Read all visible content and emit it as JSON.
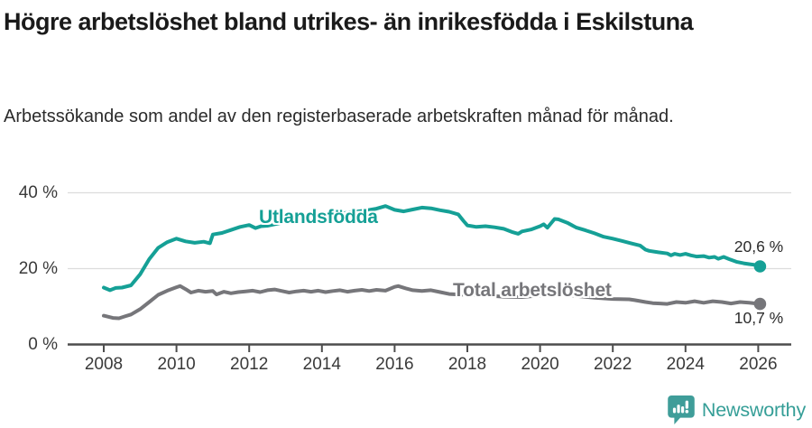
{
  "header": {
    "title": "Högre arbetslöshet bland utrikes- än inrikesfödda i Eskilstuna",
    "subtitle": "Arbetssökande som andel av den registerbaserade arbetskraften månad för månad."
  },
  "chart_data": {
    "type": "line",
    "title": "Högre arbetslöshet bland utrikes- än inrikesfödda i Eskilstuna",
    "subtitle": "Arbetssökande som andel av den registerbaserade arbetskraften månad för månad.",
    "xlabel": "",
    "ylabel": "",
    "xlim": [
      2007,
      2026.9
    ],
    "ylim": [
      0,
      42
    ],
    "grid": "horizontal",
    "grid_color": "#dcdcdc",
    "axis_color": "#4d4d4d",
    "x_ticks": [
      2008,
      2010,
      2012,
      2014,
      2016,
      2018,
      2020,
      2022,
      2024,
      2026
    ],
    "y_ticks": [
      {
        "value": 0,
        "label": "0 %"
      },
      {
        "value": 20,
        "label": "20 %"
      },
      {
        "value": 40,
        "label": "40 %"
      }
    ],
    "series": [
      {
        "name": "Utlandsfödda",
        "color": "#15a096",
        "end_label": "20,6 %",
        "end_value": 20.6,
        "points": [
          [
            2008,
            15.0
          ],
          [
            2008.17,
            14.3
          ],
          [
            2008.33,
            14.9
          ],
          [
            2008.5,
            15.0
          ],
          [
            2008.75,
            15.6
          ],
          [
            2009,
            18.5
          ],
          [
            2009.25,
            22.5
          ],
          [
            2009.5,
            25.5
          ],
          [
            2009.75,
            27.0
          ],
          [
            2010,
            27.9
          ],
          [
            2010.25,
            27.2
          ],
          [
            2010.5,
            26.8
          ],
          [
            2010.75,
            27.1
          ],
          [
            2010.92,
            26.7
          ],
          [
            2011,
            29.0
          ],
          [
            2011.25,
            29.4
          ],
          [
            2011.5,
            30.2
          ],
          [
            2011.75,
            31.0
          ],
          [
            2012,
            31.5
          ],
          [
            2012.17,
            30.7
          ],
          [
            2012.33,
            31.2
          ],
          [
            2012.5,
            31.3
          ],
          [
            2012.75,
            31.8
          ],
          [
            2013,
            32.3
          ],
          [
            2013.25,
            32.7
          ],
          [
            2013.5,
            33.1
          ],
          [
            2013.75,
            33.5
          ],
          [
            2014,
            33.9
          ],
          [
            2014.25,
            34.2
          ],
          [
            2014.5,
            34.5
          ],
          [
            2014.75,
            34.8
          ],
          [
            2015,
            35.1
          ],
          [
            2015.25,
            35.4
          ],
          [
            2015.5,
            35.8
          ],
          [
            2015.75,
            36.5
          ],
          [
            2016,
            35.5
          ],
          [
            2016.25,
            35.1
          ],
          [
            2016.5,
            35.6
          ],
          [
            2016.75,
            36.1
          ],
          [
            2017,
            35.9
          ],
          [
            2017.25,
            35.4
          ],
          [
            2017.5,
            35.0
          ],
          [
            2017.75,
            34.3
          ],
          [
            2017.9,
            32.5
          ],
          [
            2018,
            31.4
          ],
          [
            2018.25,
            31.0
          ],
          [
            2018.5,
            31.2
          ],
          [
            2018.75,
            30.9
          ],
          [
            2019,
            30.5
          ],
          [
            2019.25,
            29.6
          ],
          [
            2019.4,
            29.2
          ],
          [
            2019.5,
            29.8
          ],
          [
            2019.75,
            30.3
          ],
          [
            2020,
            31.2
          ],
          [
            2020.1,
            31.7
          ],
          [
            2020.2,
            30.8
          ],
          [
            2020.4,
            33.1
          ],
          [
            2020.5,
            33.0
          ],
          [
            2020.75,
            32.1
          ],
          [
            2021,
            30.8
          ],
          [
            2021.25,
            30.1
          ],
          [
            2021.5,
            29.3
          ],
          [
            2021.75,
            28.4
          ],
          [
            2022,
            27.9
          ],
          [
            2022.25,
            27.3
          ],
          [
            2022.5,
            26.7
          ],
          [
            2022.75,
            26.1
          ],
          [
            2022.9,
            25.0
          ],
          [
            2023,
            24.7
          ],
          [
            2023.25,
            24.3
          ],
          [
            2023.5,
            24.0
          ],
          [
            2023.6,
            23.5
          ],
          [
            2023.7,
            23.9
          ],
          [
            2023.85,
            23.6
          ],
          [
            2024,
            23.9
          ],
          [
            2024.15,
            23.5
          ],
          [
            2024.3,
            23.2
          ],
          [
            2024.5,
            23.3
          ],
          [
            2024.65,
            22.9
          ],
          [
            2024.8,
            23.1
          ],
          [
            2024.9,
            22.6
          ],
          [
            2025.05,
            23.1
          ],
          [
            2025.2,
            22.5
          ],
          [
            2025.4,
            21.8
          ],
          [
            2025.6,
            21.4
          ],
          [
            2025.75,
            21.2
          ],
          [
            2025.9,
            21.0
          ],
          [
            2026.05,
            20.6
          ]
        ]
      },
      {
        "name": "Total arbetslöshet",
        "color": "#76767a",
        "end_label": "10,7 %",
        "end_value": 10.7,
        "points": [
          [
            2008,
            7.6
          ],
          [
            2008.25,
            7.0
          ],
          [
            2008.42,
            6.9
          ],
          [
            2008.58,
            7.4
          ],
          [
            2008.75,
            7.9
          ],
          [
            2009,
            9.3
          ],
          [
            2009.25,
            11.2
          ],
          [
            2009.5,
            13.1
          ],
          [
            2009.75,
            14.2
          ],
          [
            2010,
            15.1
          ],
          [
            2010.1,
            15.4
          ],
          [
            2010.25,
            14.6
          ],
          [
            2010.4,
            13.7
          ],
          [
            2010.6,
            14.2
          ],
          [
            2010.8,
            13.9
          ],
          [
            2011,
            14.1
          ],
          [
            2011.1,
            13.2
          ],
          [
            2011.3,
            13.9
          ],
          [
            2011.5,
            13.5
          ],
          [
            2011.7,
            13.8
          ],
          [
            2011.9,
            14.0
          ],
          [
            2012.1,
            14.2
          ],
          [
            2012.3,
            13.8
          ],
          [
            2012.5,
            14.3
          ],
          [
            2012.7,
            14.5
          ],
          [
            2012.9,
            14.1
          ],
          [
            2013.1,
            13.7
          ],
          [
            2013.3,
            14.0
          ],
          [
            2013.5,
            14.2
          ],
          [
            2013.7,
            13.9
          ],
          [
            2013.9,
            14.2
          ],
          [
            2014.1,
            13.8
          ],
          [
            2014.3,
            14.1
          ],
          [
            2014.5,
            14.3
          ],
          [
            2014.7,
            13.9
          ],
          [
            2014.9,
            14.2
          ],
          [
            2015.1,
            14.4
          ],
          [
            2015.3,
            14.1
          ],
          [
            2015.5,
            14.4
          ],
          [
            2015.75,
            14.2
          ],
          [
            2016,
            15.2
          ],
          [
            2016.1,
            15.4
          ],
          [
            2016.3,
            14.8
          ],
          [
            2016.5,
            14.3
          ],
          [
            2016.75,
            14.1
          ],
          [
            2017,
            14.3
          ],
          [
            2017.25,
            13.8
          ],
          [
            2017.5,
            13.3
          ],
          [
            2017.75,
            13.2
          ],
          [
            2018,
            13.1
          ],
          [
            2018.5,
            12.9
          ],
          [
            2019,
            12.6
          ],
          [
            2019.5,
            12.5
          ],
          [
            2020,
            12.9
          ],
          [
            2020.5,
            13.3
          ],
          [
            2021,
            12.8
          ],
          [
            2021.5,
            12.3
          ],
          [
            2022,
            12.0
          ],
          [
            2022.45,
            11.9
          ],
          [
            2022.6,
            11.7
          ],
          [
            2022.9,
            11.2
          ],
          [
            2023.1,
            10.9
          ],
          [
            2023.3,
            10.8
          ],
          [
            2023.5,
            10.7
          ],
          [
            2023.75,
            11.2
          ],
          [
            2024,
            11.0
          ],
          [
            2024.25,
            11.4
          ],
          [
            2024.5,
            11.0
          ],
          [
            2024.75,
            11.4
          ],
          [
            2025,
            11.2
          ],
          [
            2025.25,
            10.8
          ],
          [
            2025.5,
            11.2
          ],
          [
            2025.75,
            11.0
          ],
          [
            2026.05,
            10.7
          ]
        ]
      }
    ],
    "legend": "inline-labels"
  },
  "footer": {
    "brand": "Newsworthy",
    "logo_icon": "newsworthy-speech-bubble-bar-chart-icon",
    "brand_color": "#359e97",
    "logo_color": "#3f9d99"
  }
}
